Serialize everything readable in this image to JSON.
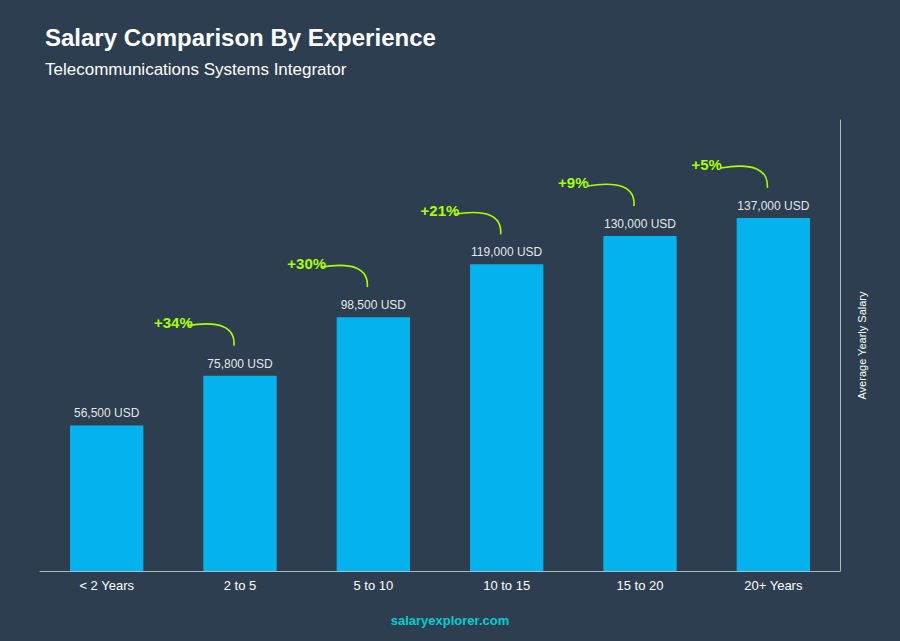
{
  "chart_data": {
    "type": "bar",
    "title": "Salary Comparison By Experience",
    "subtitle": "Telecommunications Systems Integrator",
    "categories": [
      "< 2 Years",
      "2 to 5",
      "5 to 10",
      "10 to 15",
      "15 to 20",
      "20+ Years"
    ],
    "values": [
      56500,
      75800,
      98500,
      119000,
      130000,
      137000
    ],
    "value_labels": [
      "56,500 USD",
      "75,800 USD",
      "98,500 USD",
      "119,000 USD",
      "130,000 USD",
      "137,000 USD"
    ],
    "data_labels": true,
    "annotations": [
      "+34%",
      "+30%",
      "+21%",
      "+9%",
      "+5%"
    ],
    "color": "#00BFFF",
    "ylabel": "Average Yearly Salary",
    "footer": "salaryexplorer.com",
    "ylim": [
      0,
      175000
    ],
    "tick_labels": "x",
    "grid": false
  }
}
